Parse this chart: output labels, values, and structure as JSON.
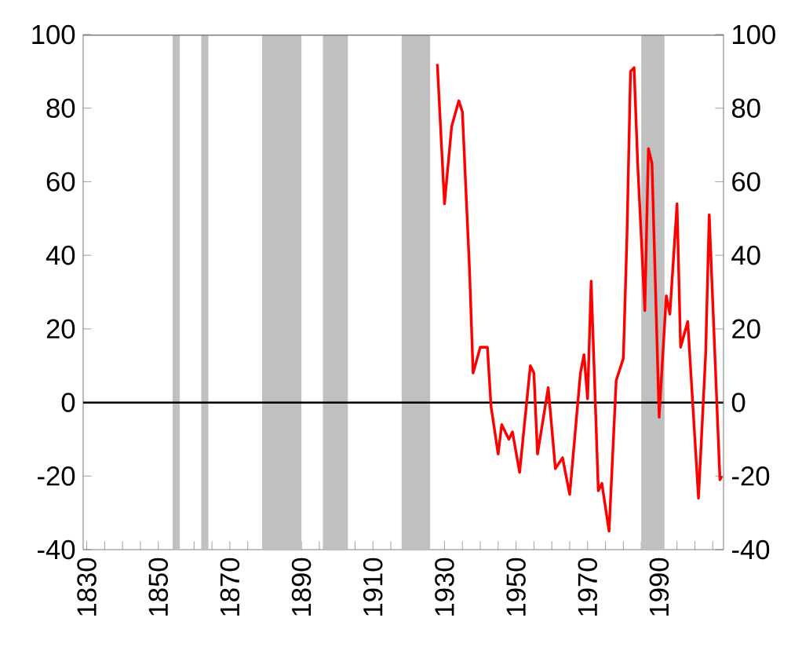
{
  "chart_data": {
    "type": "line",
    "x": [
      1928,
      1930,
      1932,
      1934,
      1935,
      1937,
      1938,
      1940,
      1942,
      1943,
      1945,
      1946,
      1948,
      1949,
      1951,
      1954,
      1955,
      1956,
      1959,
      1961,
      1963,
      1965,
      1968,
      1969,
      1970,
      1971,
      1973,
      1974,
      1976,
      1978,
      1980,
      1981,
      1982,
      1983,
      1984,
      1986,
      1987,
      1988,
      1990,
      1992,
      1993,
      1995,
      1996,
      1998,
      2001,
      2003,
      2004,
      2007,
      2007.5
    ],
    "series": [
      {
        "color": "#ff0000",
        "values": [
          92,
          54,
          75,
          82,
          79,
          36,
          8,
          15,
          15,
          -1,
          -14,
          -6,
          -10,
          -8,
          -19,
          10,
          8,
          -14,
          4,
          -18,
          -15,
          -25,
          8,
          13,
          1,
          33,
          -24,
          -22,
          -35,
          6,
          12,
          45,
          90,
          91,
          65,
          25,
          69,
          65,
          -4,
          29,
          24,
          54,
          15,
          22,
          -26,
          13,
          51,
          -21,
          -20
        ]
      }
    ],
    "xlim": [
      1829,
      2008
    ],
    "xticks": [
      1830,
      {
        "value": 1835,
        "label": null
      },
      {
        "value": 1840,
        "label": null
      },
      {
        "value": 1845,
        "label": null
      },
      1850,
      {
        "value": 1855,
        "label": null
      },
      {
        "value": 1860,
        "label": null
      },
      {
        "value": 1865,
        "label": null
      },
      1870,
      {
        "value": 1875,
        "label": null
      },
      {
        "value": 1880,
        "label": null
      },
      {
        "value": 1885,
        "label": null
      },
      1890,
      {
        "value": 1895,
        "label": null
      },
      {
        "value": 1900,
        "label": null
      },
      {
        "value": 1905,
        "label": null
      },
      1910,
      {
        "value": 1915,
        "label": null
      },
      {
        "value": 1920,
        "label": null
      },
      {
        "value": 1925,
        "label": null
      },
      1930,
      {
        "value": 1935,
        "label": null
      },
      {
        "value": 1940,
        "label": null
      },
      {
        "value": 1945,
        "label": null
      },
      1950,
      {
        "value": 1955,
        "label": null
      },
      {
        "value": 1960,
        "label": null
      },
      {
        "value": 1965,
        "label": null
      },
      1970,
      {
        "value": 1975,
        "label": null
      },
      {
        "value": 1980,
        "label": null
      },
      {
        "value": 1985,
        "label": null
      },
      1990,
      {
        "value": 1995,
        "label": null
      },
      {
        "value": 2000,
        "label": null
      },
      {
        "value": 2005,
        "label": null
      }
    ],
    "ylim": [
      -40,
      100
    ],
    "yticks": [
      -40,
      -20,
      0,
      20,
      40,
      60,
      80,
      100
    ],
    "y2lim": [
      -40,
      100
    ],
    "y2ticks": [
      -40,
      -20,
      0,
      20,
      40,
      60,
      80,
      100
    ],
    "ref_lines": [
      {
        "axis": "y",
        "value": 0,
        "color": "#000000"
      }
    ],
    "bands": [
      {
        "axis": "x",
        "from": 1854,
        "to": 1856,
        "color": "#c0c0c0"
      },
      {
        "axis": "x",
        "from": 1862,
        "to": 1864,
        "color": "#c0c0c0"
      },
      {
        "axis": "x",
        "from": 1879,
        "to": 1890,
        "color": "#c0c0c0"
      },
      {
        "axis": "x",
        "from": 1896,
        "to": 1903,
        "color": "#c0c0c0"
      },
      {
        "axis": "x",
        "from": 1918,
        "to": 1926,
        "color": "#c0c0c0"
      },
      {
        "axis": "x",
        "from": 1985,
        "to": 1991.5,
        "color": "#c0c0c0"
      }
    ],
    "marker": "none",
    "line_style": "solid"
  }
}
